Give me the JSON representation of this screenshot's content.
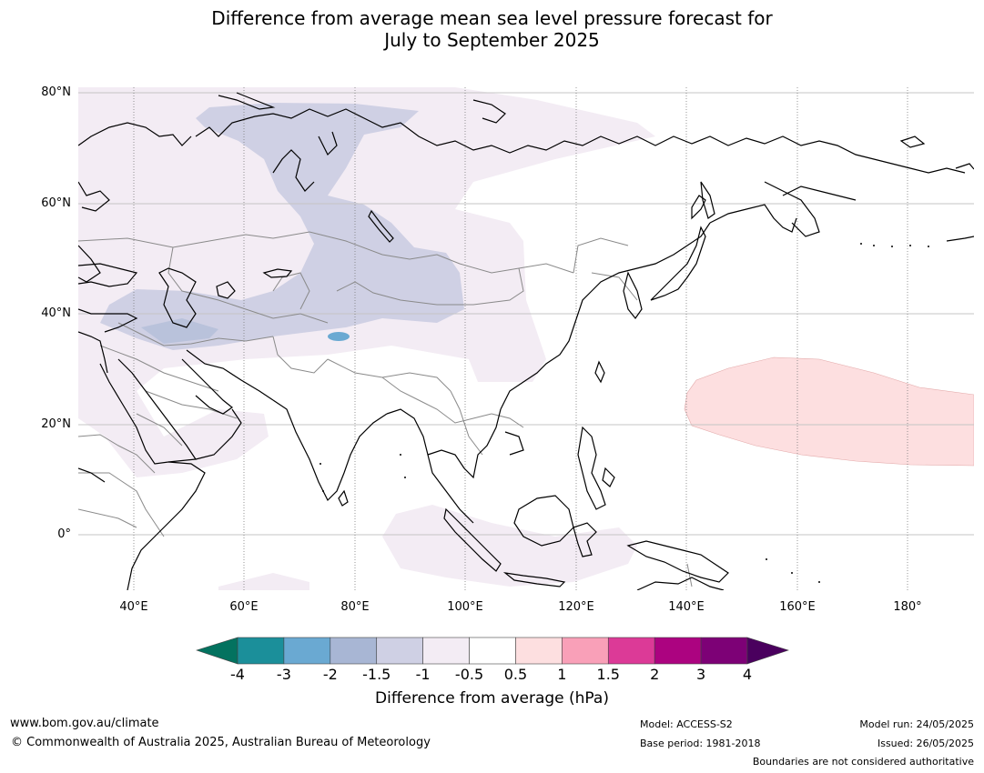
{
  "title_line1": "Difference from average mean sea level pressure forecast for",
  "title_line2": "July to September 2025",
  "lat_labels": [
    "80°N",
    "60°N",
    "40°N",
    "20°N",
    "0°"
  ],
  "lon_labels": [
    "40°E",
    "60°E",
    "80°E",
    "100°E",
    "120°E",
    "140°E",
    "160°E",
    "180°"
  ],
  "map": {
    "lon_range": [
      30,
      192
    ],
    "lat_range": [
      -10,
      81
    ],
    "projection": "plate carree",
    "features": [
      "coastlines (black)",
      "national borders (grey)",
      "dotted meridians",
      "grey parallels"
    ]
  },
  "colorbar": {
    "tick_labels": [
      "-4",
      "-3",
      "-2",
      "-1.5",
      "-1",
      "-0.5",
      "0.5",
      "1",
      "1.5",
      "2",
      "3",
      "4"
    ],
    "colors": {
      "below_min": "#03725f",
      "bins": [
        "#1b8f9a",
        "#6aa9d2",
        "#a8b6d4",
        "#cfd0e4",
        "#f3ecf4",
        "#ffffff",
        "#fddfe0",
        "#f9a0b8",
        "#dc3a97",
        "#ac0380",
        "#7d0176"
      ],
      "above_max": "#4a005e"
    },
    "title": "Difference from average (hPa)"
  },
  "footer": {
    "website": "www.bom.gov.au/climate",
    "copyright": "© Commonwealth of Australia 2025, Australian Bureau of Meteorology",
    "model": "Model: ACCESS-S2",
    "base_period": "Base period: 1981-2018",
    "model_run": "Model run: 24/05/2025",
    "issued": "Issued: 26/05/2025",
    "disclaimer": "Boundaries are not considered authoritative"
  }
}
